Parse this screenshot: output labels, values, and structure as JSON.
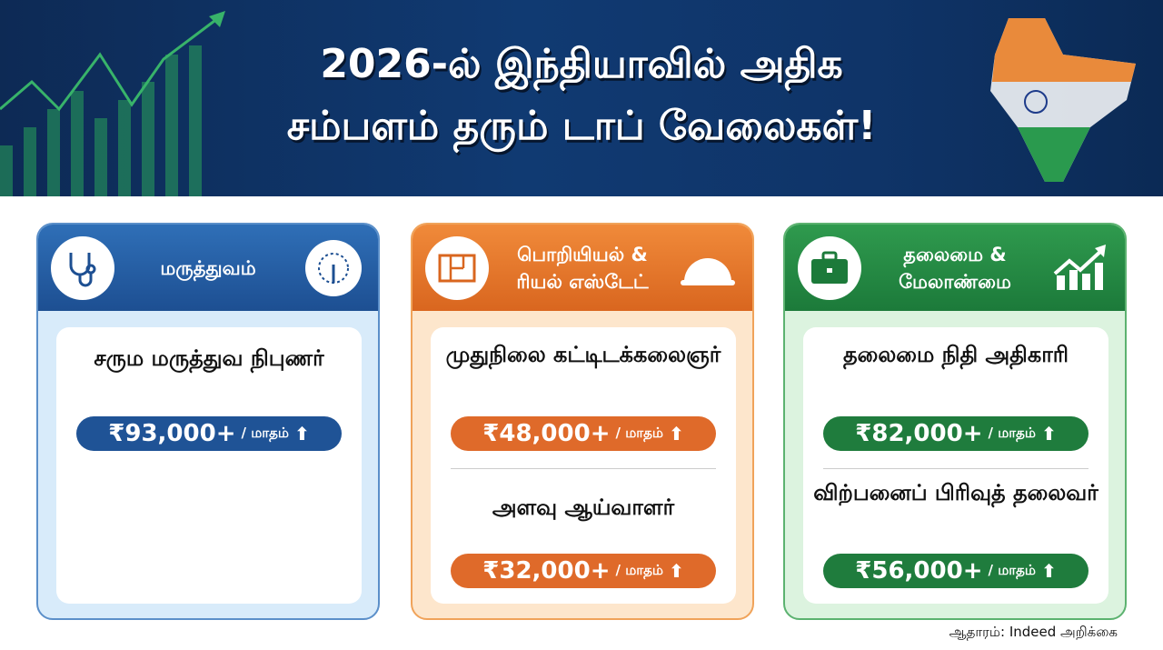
{
  "title": {
    "line1": "2026-ல் இந்தியாவில் அதிக",
    "line2": "சம்பளம் தரும் டாப் வேலைகள்!"
  },
  "colors": {
    "banner": "#103a72",
    "medical": "#1f5396",
    "engineering": "#df6a2a",
    "leadership": "#1f7c3d"
  },
  "categories": [
    {
      "title": "மருத்துவம்",
      "left_icon": "stethoscope-icon",
      "right_icon": "skin-icon",
      "jobs": [
        {
          "name": "சரும மருத்துவ நிபுணர்",
          "salary": "₹93,000+",
          "period": "/ மாதம்",
          "trend": "⬆"
        }
      ]
    },
    {
      "title_line1": "பொறியியல் &",
      "title_line2": "ரியல் எஸ்டேட்",
      "left_icon": "blueprint-icon",
      "right_icon": "hard-hat-icon",
      "jobs": [
        {
          "name": "முதுநிலை கட்டிடக்கலைஞர்",
          "salary": "₹48,000+",
          "period": "/ மாதம்",
          "trend": "⬆"
        },
        {
          "name": "அளவு ஆய்வாளர்",
          "salary": "₹32,000+",
          "period": "/ மாதம்",
          "trend": "⬆"
        }
      ]
    },
    {
      "title_line1": "தலைமை &",
      "title_line2": "மேலாண்மை",
      "left_icon": "briefcase-icon",
      "right_icon": "growth-chart-icon",
      "jobs": [
        {
          "name": "தலைமை நிதி அதிகாரி",
          "salary": "₹82,000+",
          "period": "/ மாதம்",
          "trend": "⬆"
        },
        {
          "name": "விற்பனைப் பிரிவுத் தலைவர்",
          "salary": "₹56,000+",
          "period": "/ மாதம்",
          "trend": "⬆"
        }
      ]
    }
  ],
  "source": "ஆதாரம்: Indeed அறிக்கை"
}
